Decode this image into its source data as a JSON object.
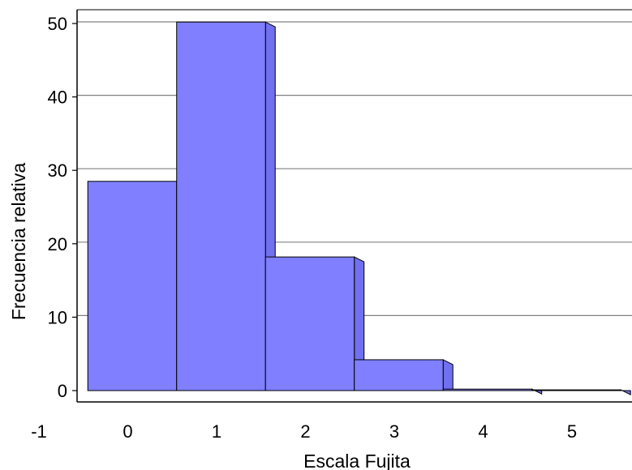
{
  "chart_data": {
    "type": "bar",
    "title": "",
    "xlabel": "Escala Fujita",
    "ylabel": "Frecuencia relativa",
    "x_ticks": [
      "-1",
      "0",
      "1",
      "2",
      "3",
      "4",
      "5"
    ],
    "y_ticks": [
      "0",
      "10",
      "20",
      "30",
      "40",
      "50"
    ],
    "xlim": [
      -1,
      5.6
    ],
    "ylim": [
      0,
      50
    ],
    "grid": "horizontal",
    "legend": "none",
    "categories": [
      "0",
      "1",
      "2",
      "3",
      "4",
      "5"
    ],
    "values": [
      28.5,
      50.2,
      18.2,
      4.2,
      0.2,
      0.1
    ],
    "colors": {
      "bar_face": "#7f7fff",
      "bar_side": "#7070f0",
      "bar_edge": "#000000",
      "grid": "#808080",
      "axis": "#000000"
    }
  }
}
